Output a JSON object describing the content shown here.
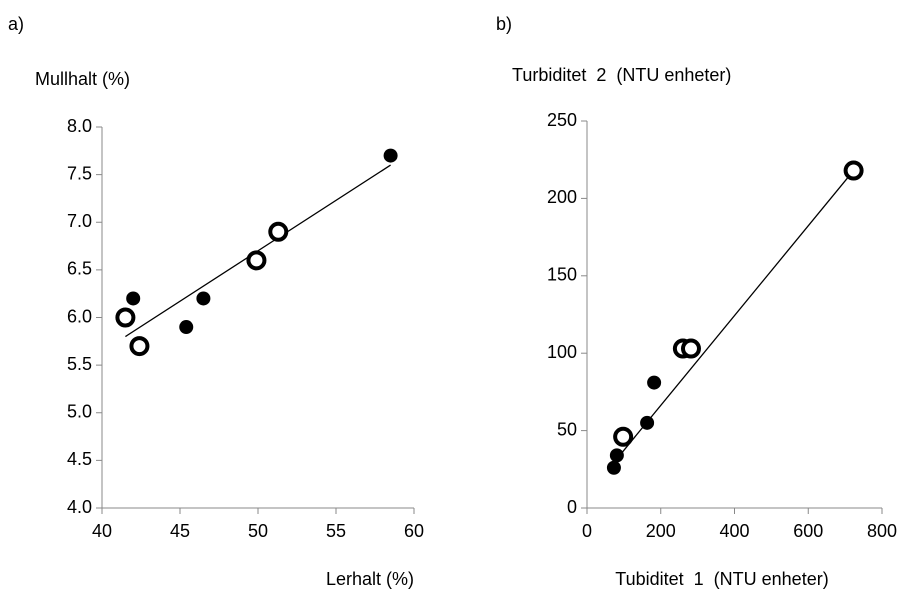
{
  "chart_data": [
    {
      "type": "scatter",
      "label": "a)",
      "ylabel": "Mullhalt (%)",
      "xlabel": "Lerhalt (%)",
      "xlim": [
        40,
        60
      ],
      "xticks": [
        40,
        45,
        50,
        55,
        60
      ],
      "ylim": [
        4,
        8
      ],
      "yticks": [
        {
          "value": 4,
          "label": "4.0"
        },
        4.5,
        {
          "value": 5,
          "label": "5.0"
        },
        5.5,
        {
          "value": 6,
          "label": "6.0"
        },
        6.5,
        {
          "value": 7,
          "label": "7.0"
        },
        7.5,
        {
          "value": 8,
          "label": "8.0"
        }
      ],
      "grid": false,
      "series": [
        {
          "color": "#000000",
          "marker": "filled",
          "x": [
            42.0,
            45.4,
            46.5,
            58.5
          ],
          "y": [
            6.2,
            5.9,
            6.2,
            7.7
          ]
        },
        {
          "color": "#000000",
          "marker": "open",
          "x": [
            41.5,
            42.4,
            49.9,
            51.3
          ],
          "y": [
            6.0,
            5.7,
            6.6,
            6.9
          ]
        }
      ],
      "trendline": {
        "color": "#000000",
        "x": [
          41.5,
          58.5
        ],
        "y": [
          5.8,
          7.6
        ]
      }
    },
    {
      "type": "scatter",
      "label": "b)",
      "ylabel": "Turbiditet  2  (NTU enheter)",
      "xlabel": "Tubiditet  1  (NTU enheter)",
      "xlim": [
        0,
        800
      ],
      "xticks": [
        0,
        200,
        400,
        600,
        800
      ],
      "ylim": [
        0,
        250
      ],
      "yticks": [
        0,
        50,
        100,
        150,
        200,
        250
      ],
      "grid": false,
      "series": [
        {
          "color": "#000000",
          "marker": "filled",
          "x": [
            73,
            81,
            163,
            182
          ],
          "y": [
            26,
            34,
            55,
            81
          ]
        },
        {
          "color": "#000000",
          "marker": "open",
          "x": [
            98,
            260,
            282,
            723
          ],
          "y": [
            46,
            103,
            103,
            218
          ]
        }
      ],
      "trendline": {
        "color": "#000000",
        "x": [
          75,
          723
        ],
        "y": [
          30,
          218
        ]
      }
    }
  ]
}
